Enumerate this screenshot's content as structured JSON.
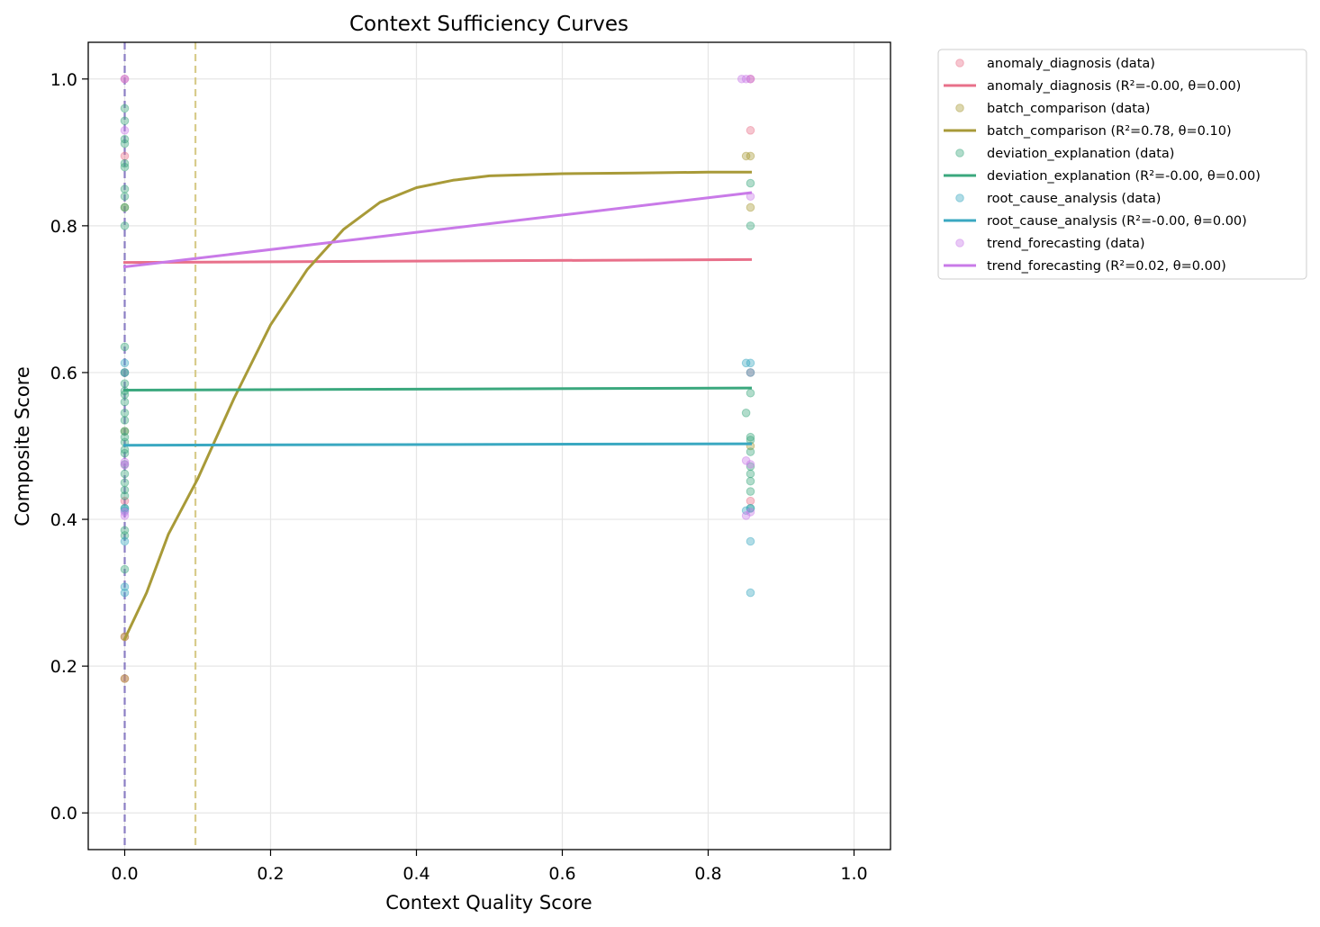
{
  "chart_data": {
    "type": "scatter",
    "title": "Context Sufficiency Curves",
    "xlabel": "Context Quality Score",
    "ylabel": "Composite Score",
    "xlim": [
      -0.05,
      1.05
    ],
    "ylim": [
      -0.05,
      1.05
    ],
    "xticks": [
      "0.0",
      "0.2",
      "0.4",
      "0.6",
      "0.8",
      "1.0"
    ],
    "yticks": [
      "0.0",
      "0.2",
      "0.4",
      "0.6",
      "0.8",
      "1.0"
    ],
    "grid": true,
    "legend_position": "outside-upper-right",
    "threshold_lines": [
      {
        "x": 0.0,
        "color": "#8c7fc4"
      },
      {
        "x": 0.097,
        "color": "#d8cc8c"
      }
    ],
    "series": [
      {
        "name": "anomaly_diagnosis",
        "color": "#e8708a",
        "data_label": "anomaly_diagnosis (data)",
        "fit_label": "anomaly_diagnosis (R²=-0.00, θ=0.00)",
        "points": [
          [
            0,
            1.0
          ],
          [
            0,
            0.895
          ],
          [
            0,
            0.6
          ],
          [
            0,
            0.425
          ],
          [
            0,
            0.24
          ],
          [
            0,
            0.183
          ],
          [
            0.858,
            1.0
          ],
          [
            0.858,
            0.93
          ],
          [
            0.858,
            0.6
          ],
          [
            0.858,
            0.425
          ]
        ],
        "fit": [
          [
            0,
            0.75
          ],
          [
            0.858,
            0.754
          ]
        ]
      },
      {
        "name": "batch_comparison",
        "color": "#a89a38",
        "data_label": "batch_comparison (data)",
        "fit_label": "batch_comparison (R²=0.78, θ=0.10)",
        "points": [
          [
            0,
            0.825
          ],
          [
            0,
            0.24
          ],
          [
            0,
            0.183
          ],
          [
            0,
            0.52
          ],
          [
            0.858,
            0.895
          ],
          [
            0.852,
            0.895
          ],
          [
            0.858,
            0.825
          ],
          [
            0.858,
            0.5
          ]
        ],
        "fit": [
          [
            0,
            0.237
          ],
          [
            0.03,
            0.3
          ],
          [
            0.06,
            0.38
          ],
          [
            0.1,
            0.455
          ],
          [
            0.15,
            0.565
          ],
          [
            0.2,
            0.665
          ],
          [
            0.25,
            0.74
          ],
          [
            0.3,
            0.795
          ],
          [
            0.35,
            0.832
          ],
          [
            0.4,
            0.852
          ],
          [
            0.45,
            0.862
          ],
          [
            0.5,
            0.868
          ],
          [
            0.6,
            0.871
          ],
          [
            0.7,
            0.872
          ],
          [
            0.8,
            0.873
          ],
          [
            0.858,
            0.873
          ]
        ]
      },
      {
        "name": "deviation_explanation",
        "color": "#3ba87e",
        "data_label": "deviation_explanation (data)",
        "fit_label": "deviation_explanation (R²=-0.00, θ=0.00)",
        "points": [
          [
            0,
            0.96
          ],
          [
            0,
            0.943
          ],
          [
            0,
            0.918
          ],
          [
            0,
            0.912
          ],
          [
            0,
            0.885
          ],
          [
            0,
            0.88
          ],
          [
            0,
            0.85
          ],
          [
            0,
            0.84
          ],
          [
            0,
            0.825
          ],
          [
            0,
            0.8
          ],
          [
            0,
            0.635
          ],
          [
            0,
            0.6
          ],
          [
            0,
            0.585
          ],
          [
            0,
            0.575
          ],
          [
            0,
            0.57
          ],
          [
            0,
            0.56
          ],
          [
            0,
            0.545
          ],
          [
            0,
            0.535
          ],
          [
            0,
            0.52
          ],
          [
            0,
            0.512
          ],
          [
            0,
            0.505
          ],
          [
            0,
            0.495
          ],
          [
            0,
            0.49
          ],
          [
            0,
            0.475
          ],
          [
            0,
            0.462
          ],
          [
            0,
            0.45
          ],
          [
            0,
            0.44
          ],
          [
            0,
            0.432
          ],
          [
            0,
            0.415
          ],
          [
            0,
            0.385
          ],
          [
            0,
            0.378
          ],
          [
            0,
            0.332
          ],
          [
            0.858,
            0.858
          ],
          [
            0.858,
            0.8
          ],
          [
            0.858,
            0.572
          ],
          [
            0.852,
            0.545
          ],
          [
            0.858,
            0.512
          ],
          [
            0.858,
            0.508
          ],
          [
            0.858,
            0.492
          ],
          [
            0.858,
            0.472
          ],
          [
            0.858,
            0.462
          ],
          [
            0.858,
            0.452
          ],
          [
            0.858,
            0.438
          ],
          [
            0.858,
            0.415
          ]
        ],
        "fit": [
          [
            0,
            0.576
          ],
          [
            0.858,
            0.579
          ]
        ]
      },
      {
        "name": "root_cause_analysis",
        "color": "#3aa8c1",
        "data_label": "root_cause_analysis (data)",
        "fit_label": "root_cause_analysis (R²=-0.00, θ=0.00)",
        "points": [
          [
            0,
            0.613
          ],
          [
            0,
            0.6
          ],
          [
            0,
            0.415
          ],
          [
            0,
            0.412
          ],
          [
            0,
            0.37
          ],
          [
            0,
            0.308
          ],
          [
            0,
            0.3
          ],
          [
            0.852,
            0.613
          ],
          [
            0.858,
            0.613
          ],
          [
            0.858,
            0.6
          ],
          [
            0.858,
            0.415
          ],
          [
            0.852,
            0.412
          ],
          [
            0.858,
            0.37
          ],
          [
            0.858,
            0.3
          ]
        ],
        "fit": [
          [
            0,
            0.501
          ],
          [
            0.858,
            0.503
          ]
        ]
      },
      {
        "name": "trend_forecasting",
        "color": "#c97ae8",
        "data_label": "trend_forecasting (data)",
        "fit_label": "trend_forecasting (R²=0.02, θ=0.00)",
        "points": [
          [
            0,
            1.0
          ],
          [
            0,
            0.93
          ],
          [
            0,
            0.478
          ],
          [
            0,
            0.474
          ],
          [
            0,
            0.41
          ],
          [
            0,
            0.405
          ],
          [
            0.846,
            1.0
          ],
          [
            0.852,
            1.0
          ],
          [
            0.858,
            1.0
          ],
          [
            0.858,
            0.84
          ],
          [
            0.852,
            0.48
          ],
          [
            0.858,
            0.475
          ],
          [
            0.858,
            0.41
          ],
          [
            0.852,
            0.405
          ]
        ],
        "fit": [
          [
            0,
            0.744
          ],
          [
            0.858,
            0.845
          ]
        ]
      }
    ]
  }
}
